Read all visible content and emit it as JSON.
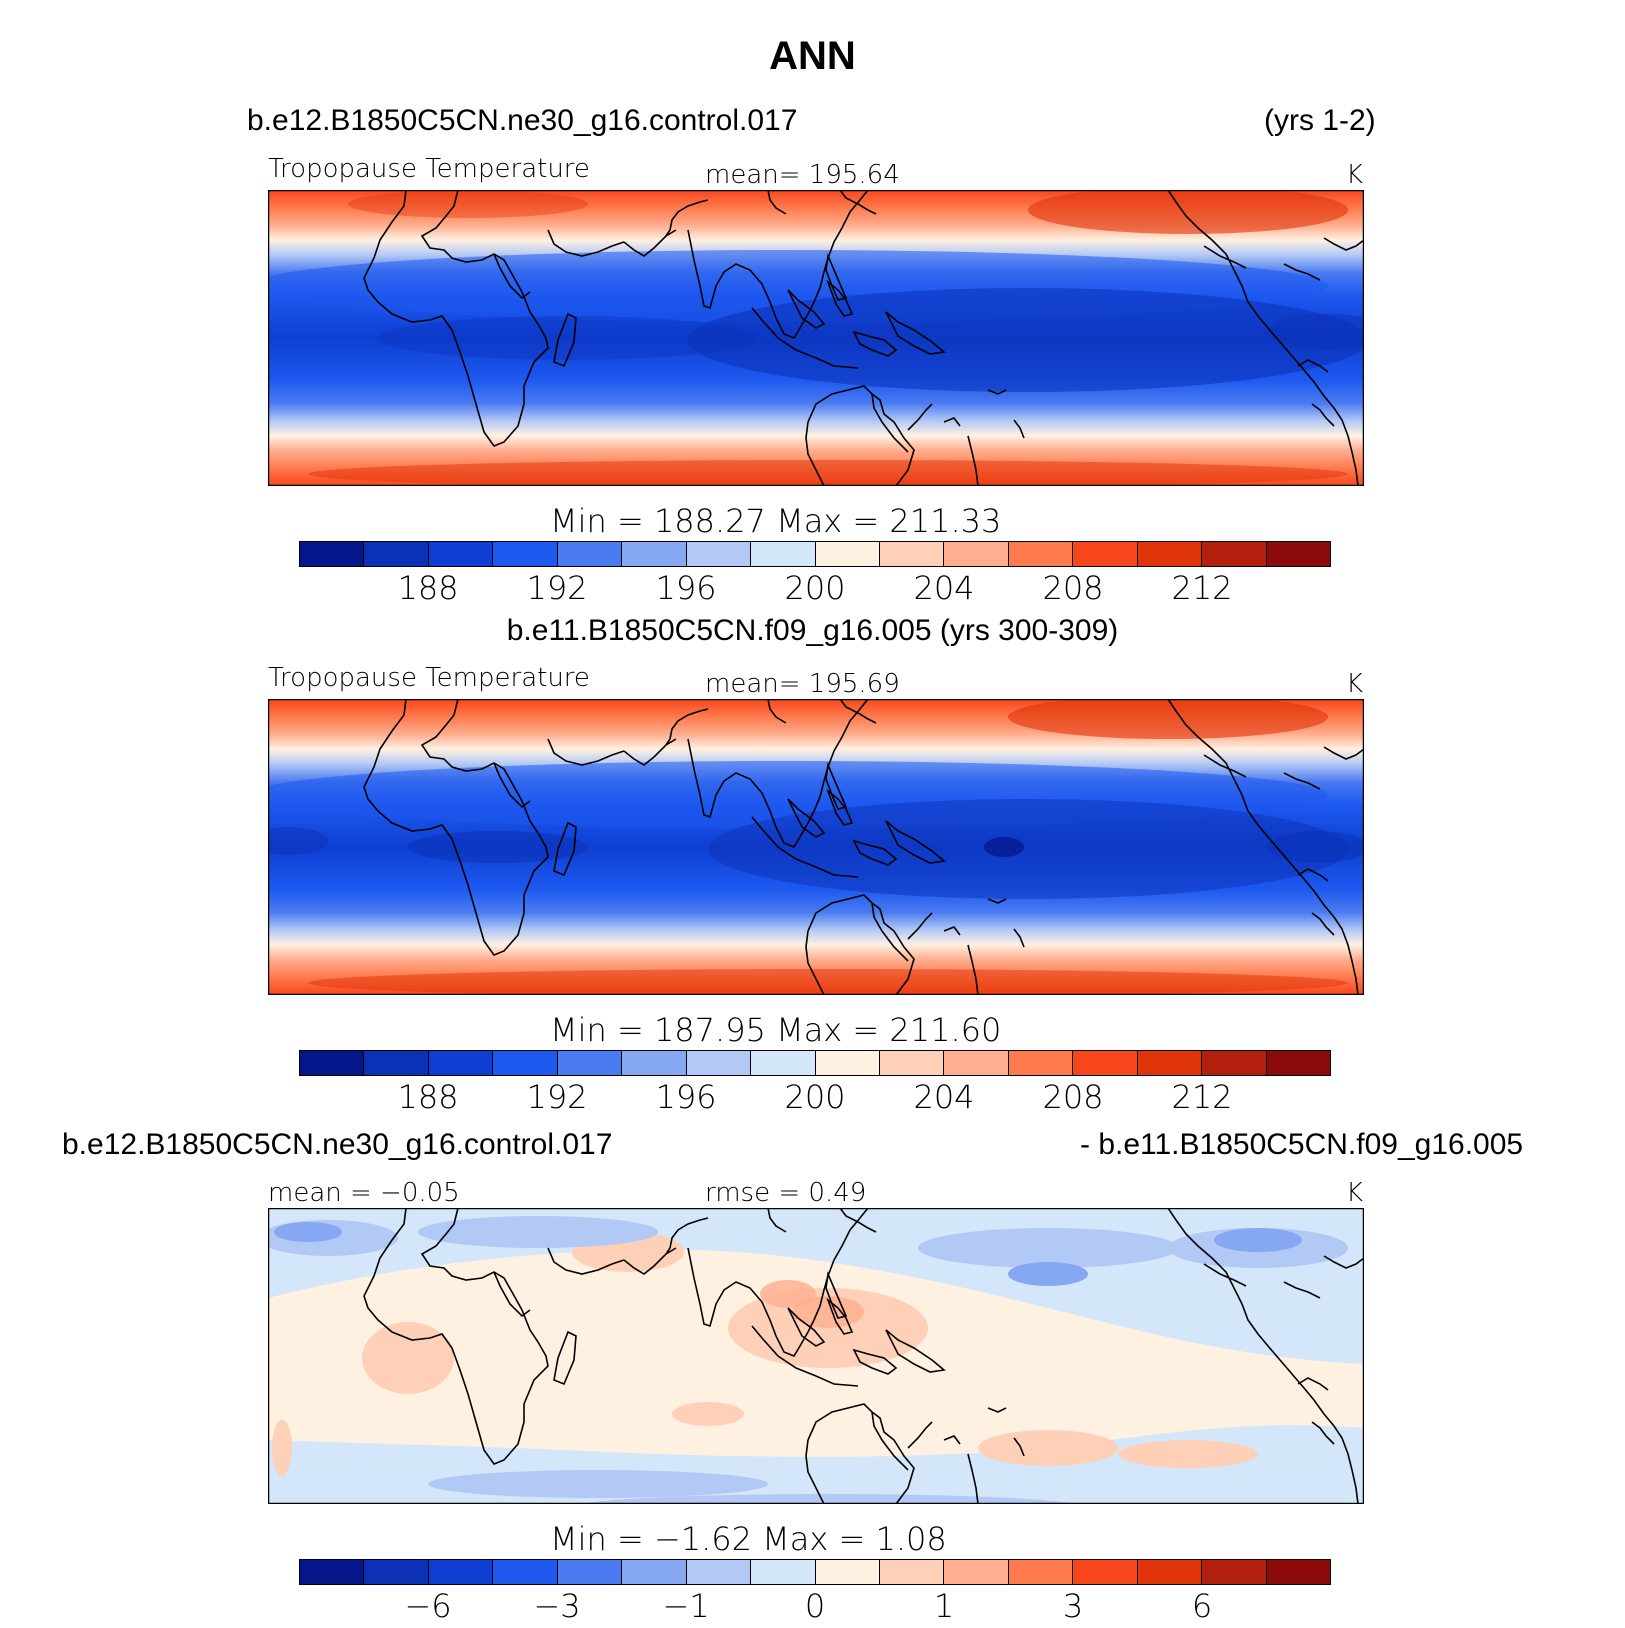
{
  "title": "ANN",
  "palette": [
    "#06168b",
    "#0b31b6",
    "#0e3fd2",
    "#1d58ef",
    "#4a7bf0",
    "#86a7f2",
    "#b2c8f5",
    "#d4e6fa",
    "#fff1e2",
    "#ffd0b8",
    "#ffae8f",
    "#ff7a4d",
    "#f8461c",
    "#e0340a",
    "#b3200e",
    "#8b0a0a"
  ],
  "panels": [
    {
      "case": "b.e12.B1850C5CN.ne30_g16.control.017",
      "years": "(yrs 1-2)",
      "field_label": "Tropopause Temperature",
      "stat_label": "mean= 195.64",
      "units": "K",
      "min_max": "Min = 188.27 Max = 211.33",
      "levels": [
        "188",
        "192",
        "196",
        "200",
        "204",
        "208",
        "212"
      ]
    },
    {
      "case": "b.e11.B1850C5CN.f09_g16.005 (yrs 300-309)",
      "field_label": "Tropopause Temperature",
      "stat_label": "mean= 195.69",
      "units": "K",
      "min_max": "Min = 187.95 Max = 211.60",
      "levels": [
        "188",
        "192",
        "196",
        "200",
        "204",
        "208",
        "212"
      ]
    },
    {
      "case_a": "b.e12.B1850C5CN.ne30_g16.control.017",
      "case_b": "- b.e11.B1850C5CN.f09_g16.005",
      "mean_label": "mean = −0.05",
      "rmse_label": "rmse = 0.49",
      "units": "K",
      "min_max": "Min = −1.62 Max = 1.08",
      "levels": [
        "−6",
        "−3",
        "−1",
        "0",
        "1",
        "3",
        "6"
      ]
    }
  ]
}
